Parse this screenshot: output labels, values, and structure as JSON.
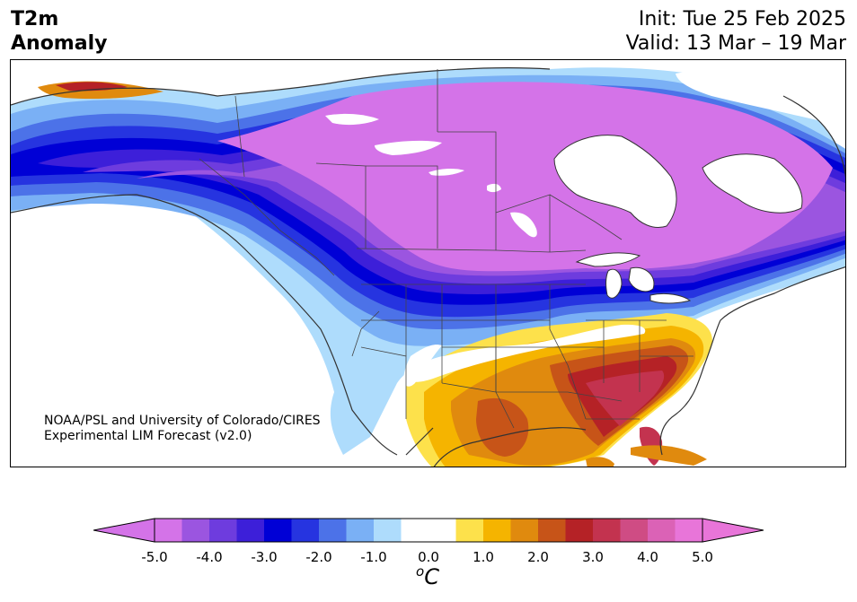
{
  "title": {
    "line1": "T2m",
    "line2": "Anomaly"
  },
  "forecast": {
    "init": "Init: Tue 25 Feb 2025",
    "valid": "Valid: 13 Mar – 19 Mar"
  },
  "credit": {
    "line1": "NOAA/PSL and University of Colorado/CIRES",
    "line2": "Experimental LIM Forecast (v2.0)"
  },
  "colorbar": {
    "unit_sup": "o",
    "unit": "C",
    "ticks": [
      "-5.0",
      "-4.0",
      "-3.0",
      "-2.0",
      "-1.0",
      "0.0",
      "1.0",
      "2.0",
      "3.0",
      "4.0",
      "5.0"
    ],
    "colors": [
      "#d473e8",
      "#9b55e0",
      "#6e3cde",
      "#3d1fd9",
      "#0000d6",
      "#2634e0",
      "#4c72e8",
      "#7ab0f5",
      "#aedcfc",
      "#ffffff",
      "#ffffff",
      "#fde14b",
      "#f5b400",
      "#e08a0e",
      "#c75418",
      "#b52226",
      "#c3334f",
      "#cf4c84",
      "#db62b6",
      "#e875d9"
    ],
    "under_color": "#d473e8",
    "over_color": "#e875d9",
    "range": [
      -5.0,
      5.0
    ]
  },
  "map": {
    "region": "North America",
    "projection": "polar stereographic"
  }
}
